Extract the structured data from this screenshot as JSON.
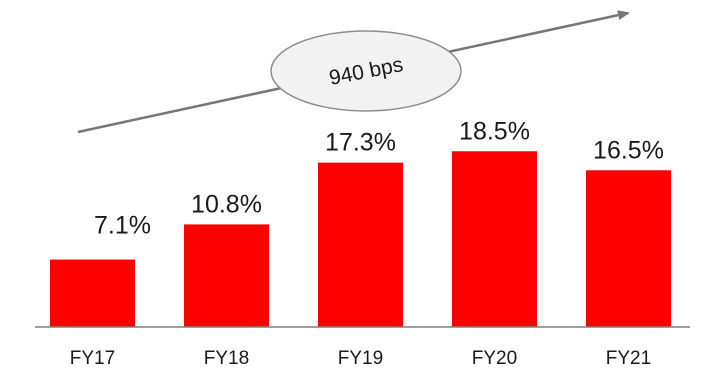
{
  "chart_data": {
    "type": "bar",
    "categories": [
      "FY17",
      "FY18",
      "FY19",
      "FY20",
      "FY21"
    ],
    "values": [
      7.1,
      10.8,
      17.3,
      18.5,
      16.5
    ],
    "value_labels": [
      "7.1%",
      "10.8%",
      "17.3%",
      "18.5%",
      "16.5%"
    ],
    "ylim": [
      0,
      20
    ],
    "grid": false,
    "legend": "none",
    "annotation": "940 bps",
    "colors": {
      "bar": "#ff0000",
      "axis": "#7f7f7f",
      "arrow": "#767676",
      "ellipse_fill": "#f2f2f2",
      "ellipse_stroke": "#8c8c8c"
    }
  }
}
